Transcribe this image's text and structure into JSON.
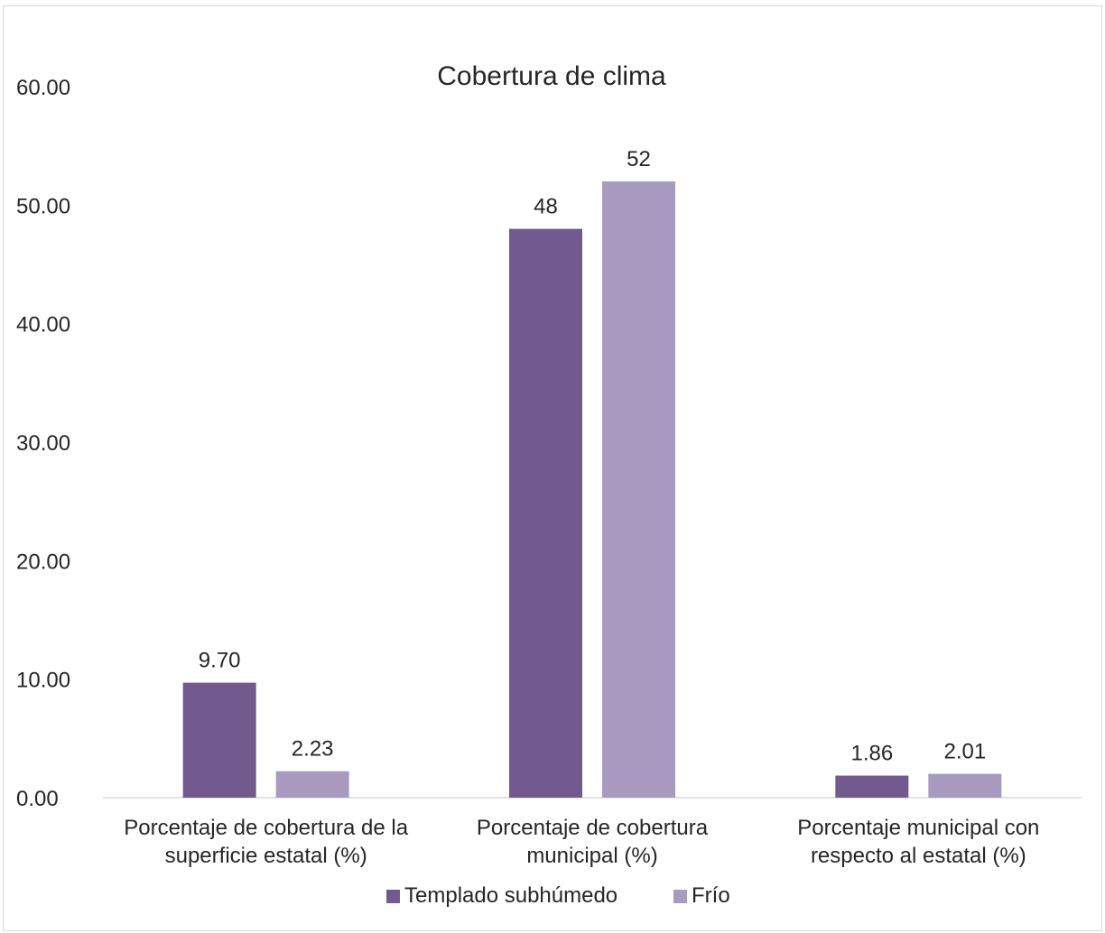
{
  "chart_data": {
    "type": "bar",
    "title": "Cobertura de clima",
    "xlabel": "",
    "ylabel": "",
    "ylim": [
      0,
      60
    ],
    "yticks": [
      "0.00",
      "10.00",
      "20.00",
      "30.00",
      "40.00",
      "50.00",
      "60.00"
    ],
    "grid": false,
    "legend_position": "bottom",
    "categories": [
      [
        "Porcentaje de cobertura de la",
        "superficie estatal (%)"
      ],
      [
        "Porcentaje de cobertura",
        "municipal (%)"
      ],
      [
        "Porcentaje municipal con",
        "respecto al  estatal (%)"
      ]
    ],
    "series": [
      {
        "name": "Templado subhúmedo",
        "color": "#735a8e",
        "values": [
          9.7,
          48,
          1.86
        ],
        "labels": [
          "9.70",
          "48",
          "1.86"
        ]
      },
      {
        "name": "Frío",
        "color": "#a89bbf",
        "values": [
          2.23,
          52,
          2.01
        ],
        "labels": [
          "2.23",
          "52",
          "2.01"
        ]
      }
    ]
  }
}
